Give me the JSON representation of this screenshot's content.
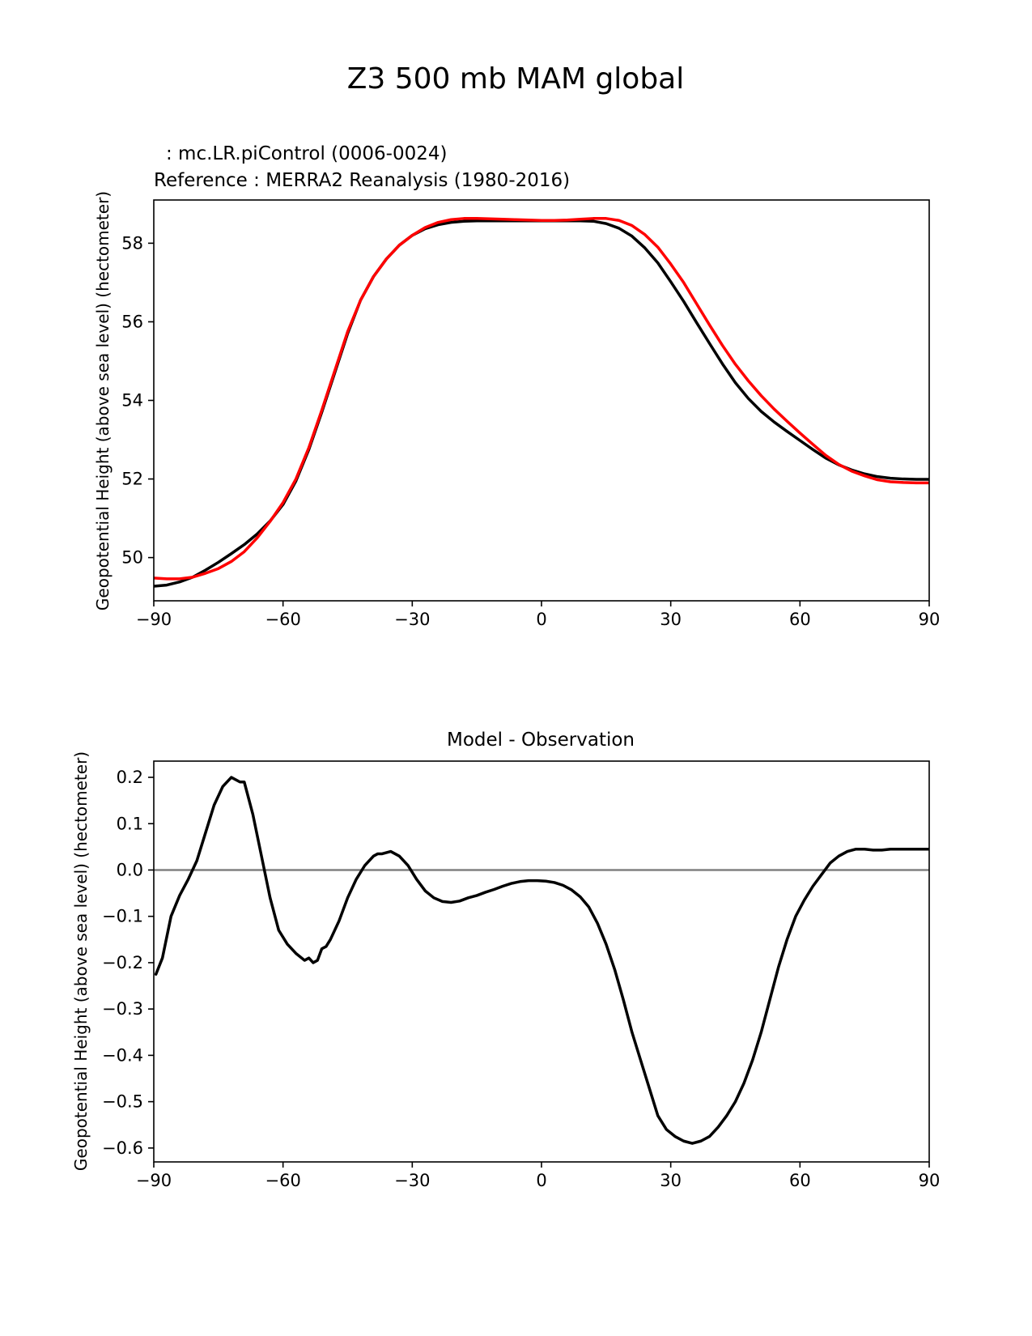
{
  "figure": {
    "title": "Z3 500 mb MAM global"
  },
  "chart_data": [
    {
      "type": "line",
      "id": "top",
      "title_lines": [
        {
          "text": ": mc.LR.piControl (0006-0024)",
          "color": "#000000"
        },
        {
          "text": "Reference : MERRA2 Reanalysis (1980-2016)",
          "color": "#ff0000"
        }
      ],
      "xlabel": "",
      "ylabel": "Geopotential Height (above sea level) (hectometer)",
      "xlim": [
        -90,
        90
      ],
      "ylim": [
        48.9,
        59.1
      ],
      "xticks": [
        -90,
        -60,
        -30,
        0,
        30,
        60,
        90
      ],
      "xtick_labels": [
        "−90",
        "−60",
        "−30",
        "0",
        "30",
        "60",
        "90"
      ],
      "yticks": [
        50,
        52,
        54,
        56,
        58
      ],
      "ytick_labels": [
        "50",
        "52",
        "54",
        "56",
        "58"
      ],
      "series": [
        {
          "name": "mc.LR.piControl (0006-0024)",
          "color": "#000000",
          "x": [
            -90,
            -87,
            -84,
            -81,
            -78,
            -75,
            -72,
            -69,
            -66,
            -63,
            -60,
            -57,
            -54,
            -51,
            -48,
            -45,
            -42,
            -39,
            -36,
            -33,
            -30,
            -27,
            -24,
            -21,
            -18,
            -15,
            -12,
            -9,
            -6,
            -3,
            0,
            3,
            6,
            9,
            12,
            15,
            18,
            21,
            24,
            27,
            30,
            33,
            36,
            39,
            42,
            45,
            48,
            51,
            54,
            57,
            60,
            63,
            66,
            69,
            72,
            75,
            78,
            81,
            84,
            87,
            90
          ],
          "y": [
            49.27,
            49.3,
            49.38,
            49.5,
            49.68,
            49.88,
            50.1,
            50.33,
            50.6,
            50.93,
            51.35,
            51.95,
            52.75,
            53.7,
            54.7,
            55.7,
            56.55,
            57.15,
            57.6,
            57.95,
            58.2,
            58.37,
            58.47,
            58.53,
            58.56,
            58.57,
            58.57,
            58.57,
            58.57,
            58.57,
            58.57,
            58.57,
            58.57,
            58.57,
            58.56,
            58.5,
            58.38,
            58.18,
            57.88,
            57.5,
            57.02,
            56.52,
            55.98,
            55.45,
            54.93,
            54.45,
            54.05,
            53.72,
            53.45,
            53.21,
            52.98,
            52.75,
            52.53,
            52.36,
            52.23,
            52.13,
            52.06,
            52.02,
            52.0,
            51.99,
            51.99
          ]
        },
        {
          "name": "MERRA2 Reanalysis (1980-2016)",
          "color": "#ff0000",
          "x": [
            -90,
            -87,
            -84,
            -81,
            -78,
            -75,
            -72,
            -69,
            -66,
            -63,
            -60,
            -57,
            -54,
            -51,
            -48,
            -45,
            -42,
            -39,
            -36,
            -33,
            -30,
            -27,
            -24,
            -21,
            -18,
            -15,
            -12,
            -9,
            -6,
            -3,
            0,
            3,
            6,
            9,
            12,
            15,
            18,
            21,
            24,
            27,
            30,
            33,
            36,
            39,
            42,
            45,
            48,
            51,
            54,
            57,
            60,
            63,
            66,
            69,
            72,
            75,
            78,
            81,
            84,
            87,
            90
          ],
          "y": [
            49.48,
            49.46,
            49.46,
            49.5,
            49.6,
            49.72,
            49.9,
            50.15,
            50.5,
            50.92,
            51.4,
            52.0,
            52.8,
            53.75,
            54.75,
            55.75,
            56.55,
            57.15,
            57.6,
            57.95,
            58.2,
            58.4,
            58.53,
            58.6,
            58.63,
            58.63,
            58.62,
            58.61,
            58.6,
            58.59,
            58.58,
            58.58,
            58.59,
            58.61,
            58.63,
            58.63,
            58.58,
            58.45,
            58.22,
            57.9,
            57.47,
            57.0,
            56.46,
            55.92,
            55.4,
            54.92,
            54.5,
            54.12,
            53.78,
            53.47,
            53.17,
            52.88,
            52.6,
            52.37,
            52.2,
            52.08,
            51.98,
            51.93,
            51.91,
            51.9,
            51.9
          ]
        }
      ]
    },
    {
      "type": "line",
      "id": "bottom",
      "title": "Model - Observation",
      "xlabel": "",
      "ylabel": "Geopotential Height (above sea level) (hectometer)",
      "xlim": [
        -90,
        90
      ],
      "ylim": [
        -0.63,
        0.235
      ],
      "xticks": [
        -90,
        -60,
        -30,
        0,
        30,
        60,
        90
      ],
      "xtick_labels": [
        "−90",
        "−60",
        "−30",
        "0",
        "30",
        "60",
        "90"
      ],
      "yticks": [
        0.2,
        0.1,
        0.0,
        -0.1,
        -0.2,
        -0.3,
        -0.4,
        -0.5,
        -0.6
      ],
      "ytick_labels": [
        "0.2",
        "0.1",
        "0.0",
        "−0.1",
        "−0.2",
        "−0.3",
        "−0.4",
        "−0.5",
        "−0.6"
      ],
      "zero_line": {
        "y": 0.0,
        "color": "#808080"
      },
      "series": [
        {
          "name": "Model - Observation",
          "color": "#000000",
          "x": [
            -89.5,
            -88,
            -86,
            -84,
            -82,
            -80,
            -78,
            -76,
            -74,
            -72,
            -70,
            -69,
            -67,
            -65,
            -63,
            -61,
            -59,
            -57,
            -55,
            -54,
            -53,
            -52,
            -51,
            -50,
            -49,
            -47,
            -45,
            -43,
            -41,
            -39,
            -38,
            -37,
            -35,
            -33,
            -31,
            -29,
            -27,
            -25,
            -23,
            -21,
            -19,
            -17,
            -15,
            -13,
            -11,
            -9,
            -7,
            -5,
            -3,
            -1,
            1,
            3,
            5,
            7,
            9,
            11,
            13,
            15,
            17,
            19,
            21,
            23,
            25,
            27,
            29,
            31,
            33,
            35,
            37,
            39,
            41,
            43,
            45,
            47,
            49,
            51,
            53,
            55,
            57,
            59,
            61,
            63,
            65,
            67,
            69,
            71,
            73,
            75,
            77,
            79,
            81,
            83,
            85,
            87,
            89,
            90
          ],
          "y": [
            -0.225,
            -0.19,
            -0.1,
            -0.055,
            -0.02,
            0.02,
            0.08,
            0.14,
            0.18,
            0.2,
            0.19,
            0.19,
            0.12,
            0.03,
            -0.06,
            -0.13,
            -0.16,
            -0.18,
            -0.195,
            -0.19,
            -0.2,
            -0.195,
            -0.17,
            -0.165,
            -0.15,
            -0.11,
            -0.06,
            -0.02,
            0.01,
            0.03,
            0.035,
            0.035,
            0.04,
            0.03,
            0.01,
            -0.02,
            -0.045,
            -0.06,
            -0.068,
            -0.07,
            -0.067,
            -0.06,
            -0.055,
            -0.048,
            -0.042,
            -0.035,
            -0.029,
            -0.025,
            -0.023,
            -0.023,
            -0.024,
            -0.027,
            -0.033,
            -0.043,
            -0.058,
            -0.08,
            -0.115,
            -0.16,
            -0.215,
            -0.28,
            -0.35,
            -0.41,
            -0.47,
            -0.53,
            -0.56,
            -0.575,
            -0.585,
            -0.59,
            -0.585,
            -0.575,
            -0.555,
            -0.53,
            -0.5,
            -0.46,
            -0.41,
            -0.35,
            -0.28,
            -0.21,
            -0.15,
            -0.1,
            -0.065,
            -0.035,
            -0.01,
            0.015,
            0.03,
            0.04,
            0.045,
            0.045,
            0.043,
            0.043,
            0.045,
            0.045,
            0.045,
            0.045,
            0.045,
            0.045
          ]
        }
      ]
    }
  ]
}
